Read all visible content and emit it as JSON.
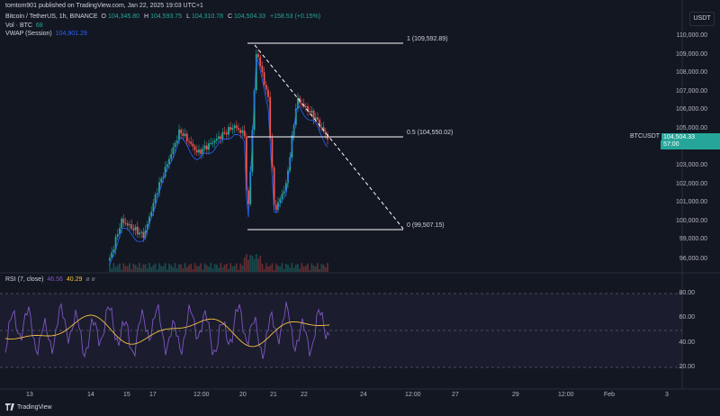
{
  "header": {
    "published": "tomtom901 published on TradingView.com, Jan 22, 2025 19:03 UTC+1",
    "symbol_line": "Bitcoin / TetherUS, 1h, BINANCE",
    "ohlc": {
      "o_label": "O",
      "o": "104,345.80",
      "h_label": "H",
      "h": "104,593.75",
      "l_label": "L",
      "l": "104,310.78",
      "c_label": "C",
      "c": "104,504.33",
      "change": "+158.53 (+0.15%)"
    },
    "vol_label": "Vol · BTC",
    "vol_value": "68",
    "vwap_label": "VWAP (Session)",
    "vwap_value": "104,901.29"
  },
  "currency_badge": "USDT",
  "price_axis": [
    "110,000.00",
    "109,000.00",
    "108,000.00",
    "107,000.00",
    "106,000.00",
    "105,000.00",
    "103,000.00",
    "102,000.00",
    "101,000.00",
    "100,000.00",
    "99,000.00",
    "96,000.00"
  ],
  "price_tag": {
    "symbol": "BTCUSDT",
    "price": "104,504.33",
    "countdown": "57:00"
  },
  "fib": {
    "level_1": "1 (109,592.89)",
    "level_05": "0.5 (104,550.02)",
    "level_0": "0 (99,507.15)"
  },
  "rsi": {
    "label": "RSI (7, close)",
    "value1": "46.56",
    "value2": "40.29",
    "axis": [
      "80.00",
      "60.00",
      "40.00",
      "20.00"
    ]
  },
  "time_axis": [
    "13",
    "14",
    "15",
    "17",
    "12:00",
    "20",
    "21",
    "22",
    "24",
    "12:00",
    "27",
    "29",
    "12:00",
    "Feb",
    "3"
  ],
  "footer": {
    "brand": "TradingView"
  },
  "colors": {
    "bg": "#131722",
    "up": "#26a69a",
    "down": "#ef5350",
    "vwap": "#2962ff",
    "rsi": "#7e57c2",
    "rsi_ma": "#f5c242"
  }
}
